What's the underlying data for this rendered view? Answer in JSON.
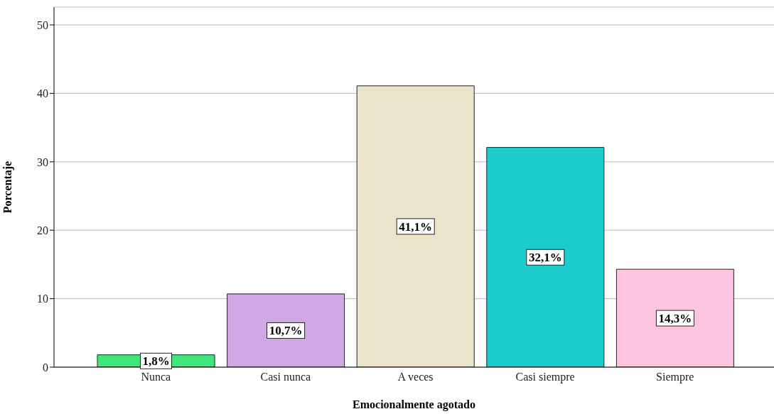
{
  "chart_data": {
    "type": "bar",
    "xlabel": "Emocionalmente agotado",
    "ylabel": "Porcentaje",
    "categories": [
      "Nunca",
      "Casi nunca",
      "A veces",
      "Casi siempre",
      "Siempre"
    ],
    "values": [
      1.8,
      10.7,
      41.1,
      32.1,
      14.3
    ],
    "value_labels": [
      "1,8%",
      "10,7%",
      "41,1%",
      "32,1%",
      "14,3%"
    ],
    "colors": [
      "#40e67a",
      "#d0a8e4",
      "#ebe4cc",
      "#1ccccc",
      "#ffc4e0"
    ],
    "ylim": [
      0,
      52.6
    ],
    "yticks": [
      0,
      10,
      20,
      30,
      40,
      50
    ],
    "grid": "y"
  }
}
